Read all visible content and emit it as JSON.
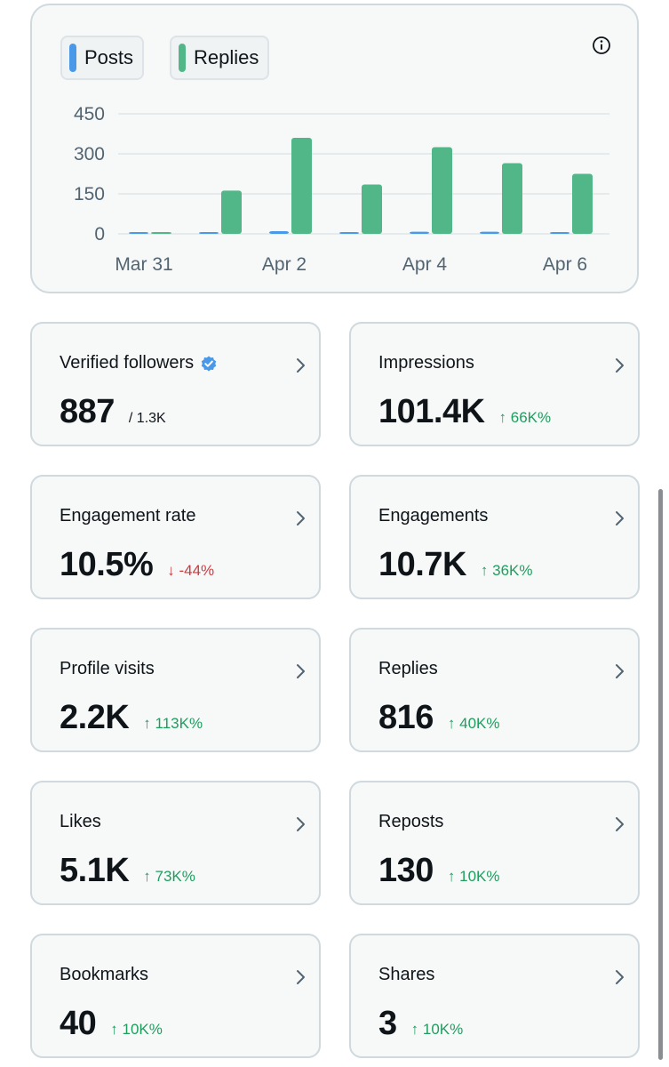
{
  "chart": {
    "legend": [
      {
        "label": "Posts",
        "color": "#4a99e9"
      },
      {
        "label": "Replies",
        "color": "#52b788"
      }
    ],
    "info_icon": "info-icon"
  },
  "chart_data": {
    "type": "bar",
    "title": "",
    "xlabel": "",
    "ylabel": "",
    "ylim": [
      0,
      450
    ],
    "y_ticks": [
      0,
      150,
      300,
      450
    ],
    "categories": [
      "Mar 31",
      "Apr 1",
      "Apr 2",
      "Apr 3",
      "Apr 4",
      "Apr 5",
      "Apr 6"
    ],
    "x_tick_labels": [
      "Mar 31",
      "Apr 2",
      "Apr 4",
      "Apr 6"
    ],
    "grid": true,
    "legend_position": "top-left",
    "series": [
      {
        "name": "Posts",
        "color": "#4a99e9",
        "values": [
          0,
          3,
          10,
          5,
          8,
          8,
          5
        ]
      },
      {
        "name": "Replies",
        "color": "#52b788",
        "values": [
          3,
          162,
          360,
          185,
          325,
          265,
          225
        ]
      }
    ]
  },
  "metrics": [
    {
      "label": "Verified followers",
      "value": "887",
      "sub": "/ 1.3K",
      "change": "",
      "direction": "none",
      "verified": true
    },
    {
      "label": "Impressions",
      "value": "101.4K",
      "sub": "",
      "change": "↑ 66K%",
      "direction": "up",
      "verified": false
    },
    {
      "label": "Engagement rate",
      "value": "10.5%",
      "sub": "",
      "change": "↓ -44%",
      "direction": "down",
      "verified": false
    },
    {
      "label": "Engagements",
      "value": "10.7K",
      "sub": "",
      "change": "↑ 36K%",
      "direction": "up",
      "verified": false
    },
    {
      "label": "Profile visits",
      "value": "2.2K",
      "sub": "",
      "change": "↑ 113K%",
      "direction": "up",
      "verified": false
    },
    {
      "label": "Replies",
      "value": "816",
      "sub": "",
      "change": "↑ 40K%",
      "direction": "up",
      "verified": false
    },
    {
      "label": "Likes",
      "value": "5.1K",
      "sub": "",
      "change": "↑ 73K%",
      "direction": "up",
      "verified": false
    },
    {
      "label": "Reposts",
      "value": "130",
      "sub": "",
      "change": "↑ 10K%",
      "direction": "up",
      "verified": false
    },
    {
      "label": "Bookmarks",
      "value": "40",
      "sub": "",
      "change": "↑ 10K%",
      "direction": "up",
      "verified": false
    },
    {
      "label": "Shares",
      "value": "3",
      "sub": "",
      "change": "↑ 10K%",
      "direction": "up",
      "verified": false
    }
  ],
  "colors": {
    "up": "#1e9e5e",
    "down": "#d0393e",
    "verified": "#4a99e9"
  }
}
